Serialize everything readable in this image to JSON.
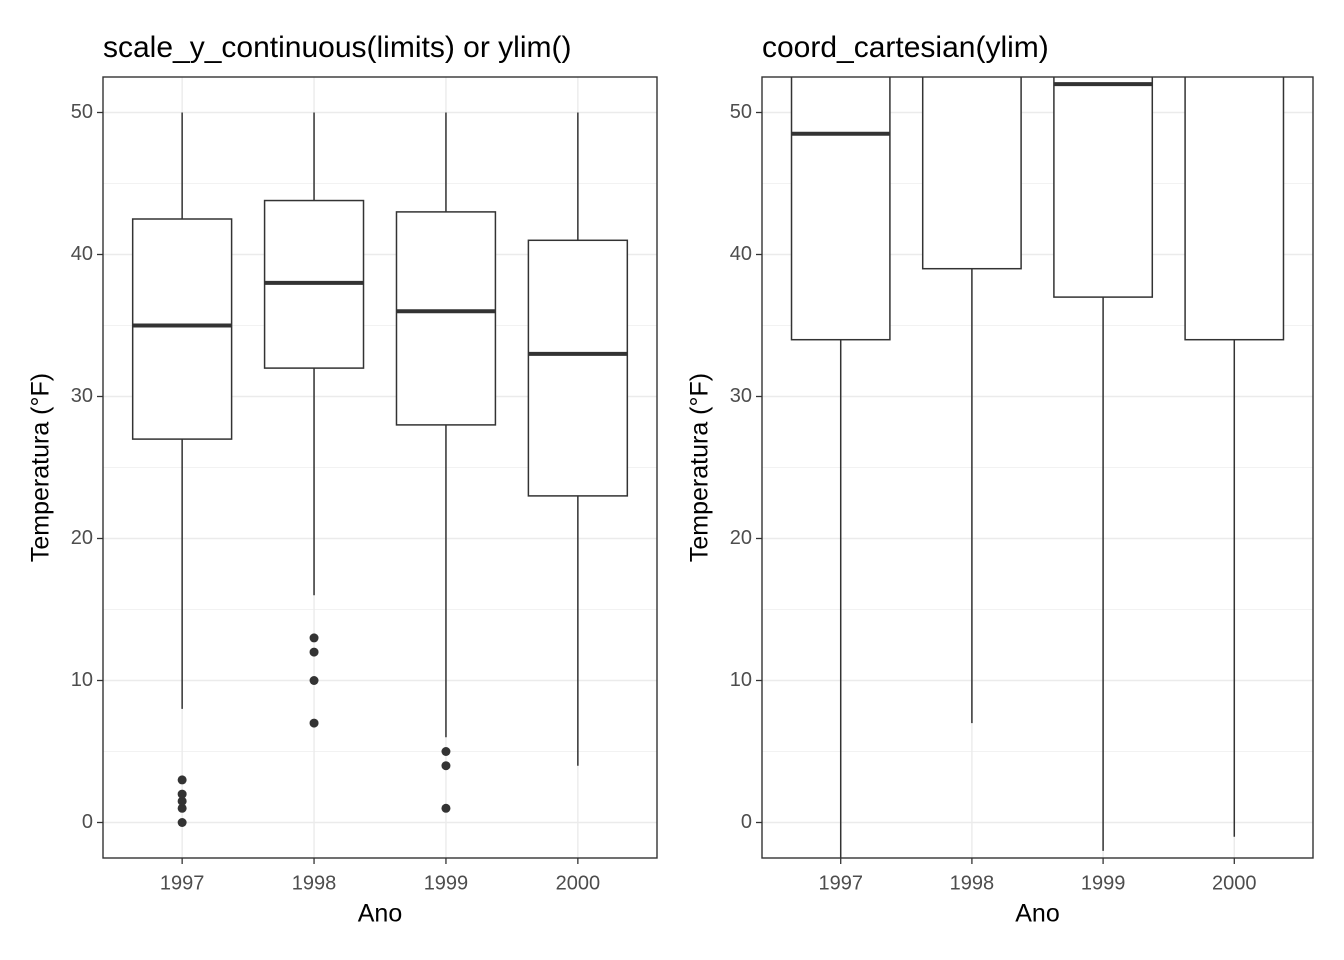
{
  "chart_data": [
    {
      "type": "boxplot",
      "title": "scale_y_continuous(limits) or ylim()",
      "xlabel": "Ano",
      "ylabel": "Temperatura (°F)",
      "categories": [
        "1997",
        "1998",
        "1999",
        "2000"
      ],
      "whisker_low": [
        8,
        16,
        6,
        4
      ],
      "q1": [
        27,
        32,
        28,
        23
      ],
      "median": [
        35,
        38,
        36,
        33
      ],
      "q3": [
        42.5,
        43.8,
        43,
        41
      ],
      "whisker_high": [
        50,
        50,
        50,
        50
      ],
      "outliers": [
        [
          0,
          1,
          1.5,
          2,
          3
        ],
        [
          7,
          10,
          12,
          13
        ],
        [
          1,
          4,
          5
        ],
        []
      ],
      "ylim": [
        -2.5,
        52.5
      ],
      "yticks": [
        0,
        10,
        20,
        30,
        40,
        50
      ],
      "minor_yticks": [
        5,
        15,
        25,
        35,
        45
      ],
      "grid": true,
      "color": "#333333"
    },
    {
      "type": "boxplot",
      "title": "coord_cartesian(ylim)",
      "xlabel": "Ano",
      "ylabel": "Temperatura (°F)",
      "categories": [
        "1997",
        "1998",
        "1999",
        "2000"
      ],
      "whisker_low": [
        null,
        7,
        -2,
        -1
      ],
      "q1": [
        34,
        39,
        37,
        34
      ],
      "median": [
        48.5,
        null,
        52,
        null
      ],
      "q3": [
        null,
        null,
        null,
        null
      ],
      "whisker_high": [
        null,
        null,
        null,
        null
      ],
      "outliers": [
        [],
        [],
        [],
        []
      ],
      "ylim": [
        -2.5,
        52.5
      ],
      "yticks": [
        0,
        10,
        20,
        30,
        40,
        50
      ],
      "minor_yticks": [
        5,
        15,
        25,
        35,
        45
      ],
      "grid": true,
      "color": "#333333"
    }
  ]
}
